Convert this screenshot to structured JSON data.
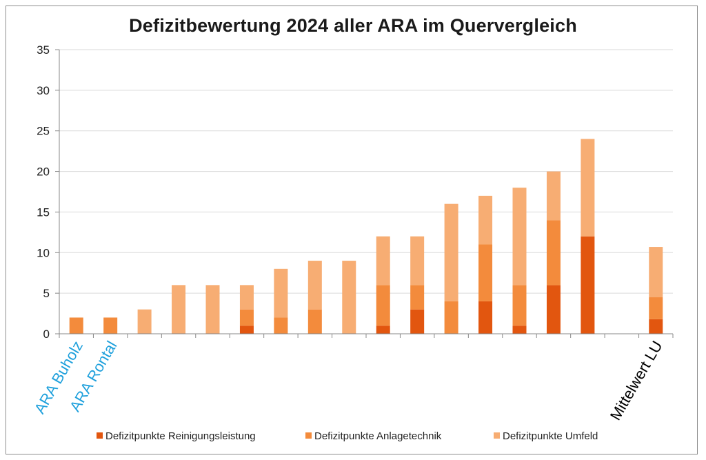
{
  "chart_data": {
    "type": "bar",
    "stacked": true,
    "title": "Defizitbewertung 2024 aller ARA im Quervergleich",
    "xlabel": "",
    "ylabel": "",
    "ylim": [
      0,
      35
    ],
    "yticks": [
      0,
      5,
      10,
      15,
      20,
      25,
      30,
      35
    ],
    "grid": true,
    "legend_position": "bottom",
    "categories": [
      "ARA Buholz",
      "ARA Rontal",
      "",
      "",
      "",
      "",
      "",
      "",
      "",
      "",
      "",
      "",
      "",
      "",
      "",
      "",
      "",
      "Mittelwert LU"
    ],
    "category_colors": [
      "#1ea0dc",
      "#1ea0dc",
      "",
      "",
      "",
      "",
      "",
      "",
      "",
      "",
      "",
      "",
      "",
      "",
      "",
      "",
      "",
      "#000000"
    ],
    "series": [
      {
        "name": "Defizitpunkte Reinigungsleistung",
        "color": "#e2560f",
        "values": [
          0,
          0,
          0,
          0,
          0,
          1,
          0,
          0,
          0,
          1,
          3,
          0,
          4,
          1,
          6,
          12,
          null,
          1.8
        ]
      },
      {
        "name": "Defizitpunkte Anlagetechnik",
        "color": "#f38b3c",
        "values": [
          2,
          2,
          0,
          0,
          0,
          2,
          2,
          3,
          0,
          5,
          3,
          4,
          7,
          5,
          8,
          0,
          null,
          2.7
        ]
      },
      {
        "name": "Defizitpunkte Umfeld",
        "color": "#f7ad73",
        "values": [
          0,
          0,
          3,
          6,
          6,
          3,
          6,
          6,
          9,
          6,
          6,
          12,
          6,
          12,
          6,
          12,
          null,
          6.2
        ]
      }
    ]
  }
}
